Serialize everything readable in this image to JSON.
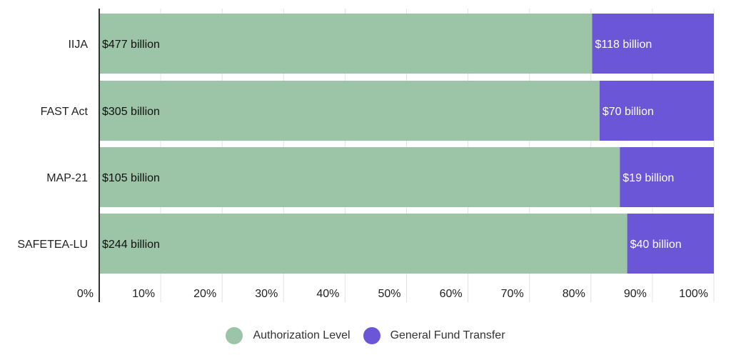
{
  "chart_data": {
    "type": "bar",
    "orientation": "horizontal",
    "stacked": true,
    "normalized_percent": true,
    "categories": [
      "IIJA",
      "FAST Act",
      "MAP-21",
      "SAFETEA-LU"
    ],
    "series": [
      {
        "name": "Authorization Level",
        "color": "#9cc4a6",
        "percent": [
          80.2,
          81.4,
          84.7,
          85.9
        ],
        "labels": [
          "$477 billion",
          "$305 billion",
          "$105 billion",
          "$244 billion"
        ]
      },
      {
        "name": "General Fund Transfer",
        "color": "#6a56d6",
        "percent": [
          19.8,
          18.6,
          15.3,
          14.1
        ],
        "labels": [
          "$118 billion",
          "$70 billion",
          "$19 billion",
          "$40 billion"
        ]
      }
    ],
    "x_ticks": [
      "0%",
      "10%",
      "20%",
      "30%",
      "40%",
      "50%",
      "60%",
      "70%",
      "80%",
      "90%",
      "100%"
    ],
    "xlim": [
      0,
      100
    ],
    "grid": true,
    "legend_position": "bottom"
  },
  "legend": {
    "items": [
      {
        "label": "Authorization Level",
        "color": "#9cc4a6"
      },
      {
        "label": "General Fund Transfer",
        "color": "#6a56d6"
      }
    ]
  }
}
